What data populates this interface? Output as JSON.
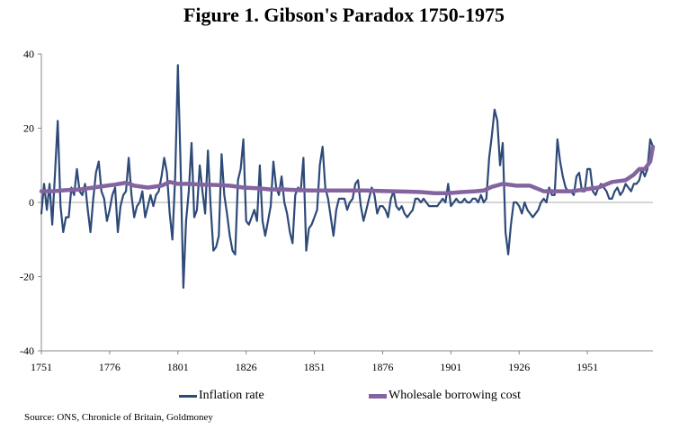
{
  "chart_data": {
    "type": "line",
    "title": "Figure 1. Gibson's Paradox 1750-1975",
    "xlabel": "",
    "ylabel": "",
    "x_tick_labels": [
      "1751",
      "1776",
      "1801",
      "1826",
      "1851",
      "1876",
      "1901",
      "1926",
      "1951"
    ],
    "x_ticks": [
      1751,
      1776,
      1801,
      1826,
      1851,
      1876,
      1901,
      1926,
      1951
    ],
    "y_tick_labels": [
      "40",
      "20",
      "0",
      "-20",
      "-40"
    ],
    "y_ticks": [
      40,
      20,
      0,
      -20,
      -40
    ],
    "xlim": [
      1751,
      1975
    ],
    "ylim": [
      -40,
      40
    ],
    "legend_position": "bottom",
    "series": [
      {
        "name": "Inflation rate",
        "color": "#2e4a78",
        "points": [
          [
            1751,
            -3
          ],
          [
            1752,
            5
          ],
          [
            1753,
            -2
          ],
          [
            1754,
            5
          ],
          [
            1755,
            -6
          ],
          [
            1756,
            8
          ],
          [
            1757,
            22
          ],
          [
            1758,
            -1
          ],
          [
            1759,
            -8
          ],
          [
            1760,
            -4
          ],
          [
            1761,
            -4
          ],
          [
            1762,
            4
          ],
          [
            1763,
            2
          ],
          [
            1764,
            9
          ],
          [
            1765,
            3
          ],
          [
            1766,
            2
          ],
          [
            1767,
            5
          ],
          [
            1768,
            -2
          ],
          [
            1769,
            -8
          ],
          [
            1770,
            1
          ],
          [
            1771,
            8
          ],
          [
            1772,
            11
          ],
          [
            1773,
            3
          ],
          [
            1774,
            1
          ],
          [
            1775,
            -5
          ],
          [
            1776,
            -2
          ],
          [
            1777,
            2
          ],
          [
            1778,
            4
          ],
          [
            1779,
            -8
          ],
          [
            1780,
            -1
          ],
          [
            1781,
            2
          ],
          [
            1782,
            3
          ],
          [
            1783,
            12
          ],
          [
            1784,
            2
          ],
          [
            1785,
            -4
          ],
          [
            1786,
            -1
          ],
          [
            1787,
            0
          ],
          [
            1788,
            3
          ],
          [
            1789,
            -4
          ],
          [
            1790,
            -1
          ],
          [
            1791,
            2
          ],
          [
            1792,
            -1
          ],
          [
            1793,
            2
          ],
          [
            1794,
            3
          ],
          [
            1795,
            7
          ],
          [
            1796,
            12
          ],
          [
            1797,
            8
          ],
          [
            1798,
            -3
          ],
          [
            1799,
            -10
          ],
          [
            1800,
            7
          ],
          [
            1801,
            37
          ],
          [
            1802,
            10
          ],
          [
            1803,
            -23
          ],
          [
            1804,
            -5
          ],
          [
            1805,
            3
          ],
          [
            1806,
            16
          ],
          [
            1807,
            -4
          ],
          [
            1808,
            -2
          ],
          [
            1809,
            10
          ],
          [
            1810,
            3
          ],
          [
            1811,
            -3
          ],
          [
            1812,
            14
          ],
          [
            1813,
            -1
          ],
          [
            1814,
            -13
          ],
          [
            1815,
            -12
          ],
          [
            1816,
            -9
          ],
          [
            1817,
            13
          ],
          [
            1818,
            2
          ],
          [
            1819,
            -3
          ],
          [
            1820,
            -9
          ],
          [
            1821,
            -13
          ],
          [
            1822,
            -14
          ],
          [
            1823,
            6
          ],
          [
            1824,
            9
          ],
          [
            1825,
            17
          ],
          [
            1826,
            -5
          ],
          [
            1827,
            -6
          ],
          [
            1828,
            -4
          ],
          [
            1829,
            -2
          ],
          [
            1830,
            -5
          ],
          [
            1831,
            10
          ],
          [
            1832,
            -5
          ],
          [
            1833,
            -9
          ],
          [
            1834,
            -5
          ],
          [
            1835,
            -1
          ],
          [
            1836,
            11
          ],
          [
            1837,
            4
          ],
          [
            1838,
            2
          ],
          [
            1839,
            7
          ],
          [
            1840,
            0
          ],
          [
            1841,
            -3
          ],
          [
            1842,
            -8
          ],
          [
            1843,
            -11
          ],
          [
            1844,
            2
          ],
          [
            1845,
            4
          ],
          [
            1846,
            3
          ],
          [
            1847,
            12
          ],
          [
            1848,
            -13
          ],
          [
            1849,
            -7
          ],
          [
            1850,
            -6
          ],
          [
            1851,
            -4
          ],
          [
            1852,
            -2
          ],
          [
            1853,
            10
          ],
          [
            1854,
            15
          ],
          [
            1855,
            4
          ],
          [
            1856,
            1
          ],
          [
            1857,
            -4
          ],
          [
            1858,
            -9
          ],
          [
            1859,
            -2
          ],
          [
            1860,
            1
          ],
          [
            1861,
            1
          ],
          [
            1862,
            1
          ],
          [
            1863,
            -2
          ],
          [
            1864,
            0
          ],
          [
            1865,
            1
          ],
          [
            1866,
            5
          ],
          [
            1867,
            6
          ],
          [
            1868,
            -1
          ],
          [
            1869,
            -5
          ],
          [
            1870,
            -2
          ],
          [
            1871,
            1
          ],
          [
            1872,
            4
          ],
          [
            1873,
            2
          ],
          [
            1874,
            -3
          ],
          [
            1875,
            -1
          ],
          [
            1876,
            -1
          ],
          [
            1877,
            -2
          ],
          [
            1878,
            -4
          ],
          [
            1879,
            1
          ],
          [
            1880,
            3
          ],
          [
            1881,
            -1
          ],
          [
            1882,
            -2
          ],
          [
            1883,
            -1
          ],
          [
            1884,
            -3
          ],
          [
            1885,
            -4
          ],
          [
            1886,
            -3
          ],
          [
            1887,
            -2
          ],
          [
            1888,
            1
          ],
          [
            1889,
            1
          ],
          [
            1890,
            0
          ],
          [
            1891,
            1
          ],
          [
            1892,
            0
          ],
          [
            1893,
            -1
          ],
          [
            1894,
            -1
          ],
          [
            1895,
            -1
          ],
          [
            1896,
            -1
          ],
          [
            1897,
            0
          ],
          [
            1898,
            1
          ],
          [
            1899,
            0
          ],
          [
            1900,
            5
          ],
          [
            1901,
            -1
          ],
          [
            1902,
            0
          ],
          [
            1903,
            1
          ],
          [
            1904,
            0
          ],
          [
            1905,
            0
          ],
          [
            1906,
            1
          ],
          [
            1907,
            0
          ],
          [
            1908,
            0
          ],
          [
            1909,
            1
          ],
          [
            1910,
            1
          ],
          [
            1911,
            0
          ],
          [
            1912,
            2
          ],
          [
            1913,
            0
          ],
          [
            1914,
            1
          ],
          [
            1915,
            12
          ],
          [
            1916,
            18
          ],
          [
            1917,
            25
          ],
          [
            1918,
            22
          ],
          [
            1919,
            10
          ],
          [
            1920,
            16
          ],
          [
            1921,
            -8
          ],
          [
            1922,
            -14
          ],
          [
            1923,
            -6
          ],
          [
            1924,
            0
          ],
          [
            1925,
            0
          ],
          [
            1926,
            -1
          ],
          [
            1927,
            -3
          ],
          [
            1928,
            0
          ],
          [
            1929,
            -2
          ],
          [
            1930,
            -3
          ],
          [
            1931,
            -4
          ],
          [
            1932,
            -3
          ],
          [
            1933,
            -2
          ],
          [
            1934,
            0
          ],
          [
            1935,
            1
          ],
          [
            1936,
            0
          ],
          [
            1937,
            4
          ],
          [
            1938,
            2
          ],
          [
            1939,
            2
          ],
          [
            1940,
            17
          ],
          [
            1941,
            11
          ],
          [
            1942,
            7
          ],
          [
            1943,
            4
          ],
          [
            1944,
            3
          ],
          [
            1945,
            3
          ],
          [
            1946,
            2
          ],
          [
            1947,
            7
          ],
          [
            1948,
            8
          ],
          [
            1949,
            3
          ],
          [
            1950,
            3
          ],
          [
            1951,
            9
          ],
          [
            1952,
            9
          ],
          [
            1953,
            3
          ],
          [
            1954,
            2
          ],
          [
            1955,
            4
          ],
          [
            1956,
            5
          ],
          [
            1957,
            4
          ],
          [
            1958,
            3
          ],
          [
            1959,
            1
          ],
          [
            1960,
            1
          ],
          [
            1961,
            3
          ],
          [
            1962,
            4
          ],
          [
            1963,
            2
          ],
          [
            1964,
            3
          ],
          [
            1965,
            5
          ],
          [
            1966,
            4
          ],
          [
            1967,
            3
          ],
          [
            1968,
            5
          ],
          [
            1969,
            5
          ],
          [
            1970,
            6
          ],
          [
            1971,
            9
          ],
          [
            1972,
            7
          ],
          [
            1973,
            9
          ],
          [
            1974,
            17
          ],
          [
            1975,
            15
          ]
        ]
      },
      {
        "name": "Wholesale borrowing cost",
        "color": "#8464a0",
        "points": [
          [
            1751,
            3
          ],
          [
            1755,
            3
          ],
          [
            1760,
            3.3
          ],
          [
            1765,
            3.5
          ],
          [
            1770,
            4
          ],
          [
            1775,
            4.5
          ],
          [
            1778,
            4.8
          ],
          [
            1782,
            5.3
          ],
          [
            1785,
            4.5
          ],
          [
            1790,
            4
          ],
          [
            1795,
            4.5
          ],
          [
            1798,
            5.5
          ],
          [
            1801,
            5
          ],
          [
            1805,
            5
          ],
          [
            1810,
            4.8
          ],
          [
            1815,
            4.7
          ],
          [
            1820,
            4.5
          ],
          [
            1825,
            4
          ],
          [
            1830,
            3.8
          ],
          [
            1835,
            3.5
          ],
          [
            1840,
            3.5
          ],
          [
            1845,
            3.3
          ],
          [
            1850,
            3.2
          ],
          [
            1855,
            3.2
          ],
          [
            1860,
            3.2
          ],
          [
            1865,
            3.2
          ],
          [
            1870,
            3.2
          ],
          [
            1875,
            3.1
          ],
          [
            1880,
            3
          ],
          [
            1885,
            2.9
          ],
          [
            1890,
            2.8
          ],
          [
            1895,
            2.5
          ],
          [
            1900,
            2.5
          ],
          [
            1905,
            2.8
          ],
          [
            1910,
            3
          ],
          [
            1913,
            3.2
          ],
          [
            1916,
            4.2
          ],
          [
            1920,
            5
          ],
          [
            1925,
            4.5
          ],
          [
            1930,
            4.5
          ],
          [
            1935,
            3
          ],
          [
            1940,
            3
          ],
          [
            1945,
            3
          ],
          [
            1950,
            3.5
          ],
          [
            1955,
            4
          ],
          [
            1960,
            5.5
          ],
          [
            1965,
            6
          ],
          [
            1968,
            7.5
          ],
          [
            1970,
            9
          ],
          [
            1972,
            9
          ],
          [
            1974,
            11
          ],
          [
            1975,
            15
          ]
        ]
      }
    ],
    "source": "Source: ONS, Chronicle of Britain, Goldmoney"
  }
}
